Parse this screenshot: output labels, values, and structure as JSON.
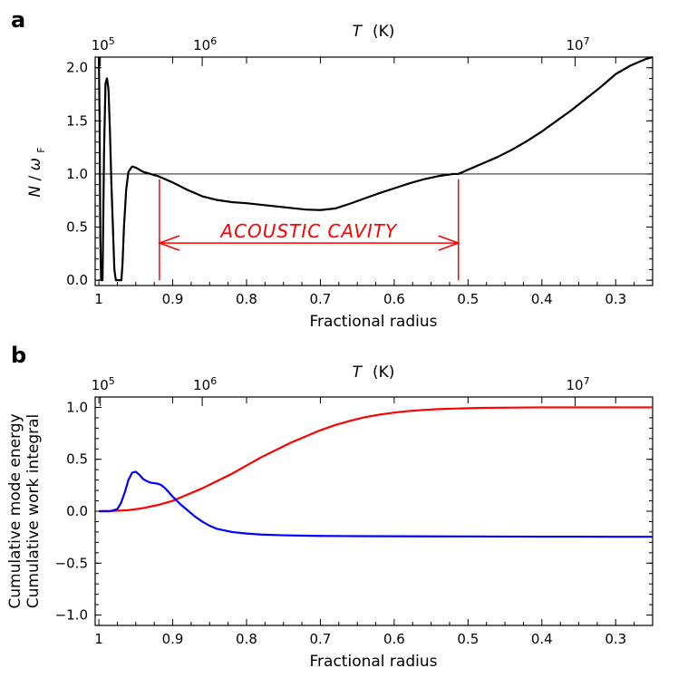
{
  "chart_data": [
    {
      "panel": "a",
      "type": "line",
      "xlabel": "Fractional radius",
      "ylabel_main": "N",
      "ylabel_slash": "/",
      "ylabel_omega": "ω",
      "ylabel_sub": "F",
      "top_axis_label_T": "T",
      "top_axis_label_unit": "(K)",
      "xlim": [
        1.005,
        0.25
      ],
      "ylim": [
        -0.05,
        2.1
      ],
      "x_ticks": [
        1,
        0.9,
        0.8,
        0.7,
        0.6,
        0.5,
        0.4,
        0.3
      ],
      "x_tick_labels": [
        "1",
        "0.9",
        "0.8",
        "0.7",
        "0.6",
        "0.5",
        "0.4",
        "0.3"
      ],
      "y_ticks": [
        0.0,
        0.5,
        1.0,
        1.5,
        2.0
      ],
      "y_tick_labels": [
        "0.0",
        "0.5",
        "1.0",
        "1.5",
        "2.0"
      ],
      "top_ticks": [
        {
          "x": 0.998,
          "base": "10",
          "exp": "5"
        },
        {
          "x": 0.86,
          "base": "10",
          "exp": "6"
        },
        {
          "x": 0.355,
          "base": "10",
          "exp": "7"
        }
      ],
      "reference_line_y": 1.0,
      "annotation": {
        "text": "ACOUSTIC CAVITY",
        "x_start": 0.918,
        "x_end": 0.513,
        "y_arrow": 0.35,
        "y_top": 0.95,
        "y_bottom": 0.0
      },
      "series": [
        {
          "name": "N/omega_F",
          "color": "#000000",
          "x": [
            1.0,
            0.999,
            0.998,
            0.997,
            0.995,
            0.993,
            0.991,
            0.989,
            0.987,
            0.985,
            0.983,
            0.981,
            0.979,
            0.977,
            0.9765,
            0.975,
            0.972,
            0.97,
            0.9695,
            0.968,
            0.966,
            0.963,
            0.96,
            0.955,
            0.95,
            0.945,
            0.94,
            0.93,
            0.92,
            0.91,
            0.9,
            0.88,
            0.86,
            0.84,
            0.82,
            0.8,
            0.78,
            0.76,
            0.74,
            0.72,
            0.7,
            0.68,
            0.66,
            0.64,
            0.62,
            0.6,
            0.58,
            0.56,
            0.54,
            0.52,
            0.513,
            0.5,
            0.48,
            0.46,
            0.44,
            0.42,
            0.4,
            0.38,
            0.36,
            0.34,
            0.32,
            0.3,
            0.28,
            0.26,
            0.25
          ],
          "y": [
            2.1,
            1.5,
            0.4,
            0.0,
            0.0,
            1.2,
            1.85,
            1.9,
            1.8,
            1.4,
            0.9,
            0.5,
            0.1,
            0.0,
            0.0,
            0.0,
            0.0,
            0.0,
            0.0,
            0.15,
            0.5,
            0.85,
            1.02,
            1.07,
            1.06,
            1.04,
            1.02,
            1.0,
            0.98,
            0.95,
            0.92,
            0.85,
            0.79,
            0.755,
            0.735,
            0.725,
            0.71,
            0.695,
            0.68,
            0.665,
            0.66,
            0.675,
            0.72,
            0.77,
            0.82,
            0.865,
            0.91,
            0.95,
            0.98,
            1.0,
            1.0,
            1.04,
            1.1,
            1.16,
            1.23,
            1.31,
            1.4,
            1.5,
            1.6,
            1.71,
            1.82,
            1.94,
            2.02,
            2.08,
            2.1
          ]
        }
      ]
    },
    {
      "panel": "b",
      "type": "line",
      "xlabel": "Fractional radius",
      "top_axis_label_T": "T",
      "top_axis_label_unit": "(K)",
      "xlim": [
        1.005,
        0.25
      ],
      "ylim": [
        -1.1,
        1.1
      ],
      "x_ticks": [
        1,
        0.9,
        0.8,
        0.7,
        0.6,
        0.5,
        0.4,
        0.3
      ],
      "x_tick_labels": [
        "1",
        "0.9",
        "0.8",
        "0.7",
        "0.6",
        "0.5",
        "0.4",
        "0.3"
      ],
      "y_ticks": [
        -1.0,
        -0.5,
        0.0,
        0.5,
        1.0
      ],
      "y_tick_labels": [
        "−1.0",
        "−0.5",
        "0.0",
        "0.5",
        "1.0"
      ],
      "top_ticks": [
        {
          "x": 0.998,
          "base": "10",
          "exp": "5"
        },
        {
          "x": 0.86,
          "base": "10",
          "exp": "6"
        },
        {
          "x": 0.355,
          "base": "10",
          "exp": "7"
        }
      ],
      "series": [
        {
          "name": "Cumulative mode energy",
          "color": "#ff0000",
          "x": [
            1.0,
            0.98,
            0.96,
            0.94,
            0.92,
            0.9,
            0.88,
            0.86,
            0.84,
            0.82,
            0.8,
            0.78,
            0.76,
            0.74,
            0.72,
            0.7,
            0.68,
            0.66,
            0.64,
            0.62,
            0.6,
            0.58,
            0.56,
            0.54,
            0.52,
            0.5,
            0.48,
            0.46,
            0.44,
            0.42,
            0.4,
            0.35,
            0.3,
            0.25
          ],
          "y": [
            0.0,
            0.003,
            0.01,
            0.03,
            0.06,
            0.1,
            0.16,
            0.22,
            0.29,
            0.36,
            0.44,
            0.52,
            0.59,
            0.66,
            0.72,
            0.78,
            0.83,
            0.87,
            0.905,
            0.93,
            0.95,
            0.965,
            0.975,
            0.983,
            0.988,
            0.992,
            0.995,
            0.997,
            0.998,
            0.999,
            1.0,
            1.0,
            1.0,
            1.0
          ]
        },
        {
          "name": "Cumulative work integral",
          "color": "#0000ff",
          "x": [
            1.0,
            0.985,
            0.975,
            0.97,
            0.965,
            0.96,
            0.955,
            0.95,
            0.945,
            0.94,
            0.935,
            0.93,
            0.925,
            0.92,
            0.915,
            0.91,
            0.905,
            0.9,
            0.89,
            0.88,
            0.87,
            0.86,
            0.85,
            0.84,
            0.82,
            0.8,
            0.78,
            0.75,
            0.72,
            0.7,
            0.65,
            0.6,
            0.55,
            0.5,
            0.45,
            0.4,
            0.35,
            0.3,
            0.25
          ],
          "y": [
            0.0,
            0.0,
            0.02,
            0.08,
            0.18,
            0.3,
            0.37,
            0.38,
            0.35,
            0.31,
            0.29,
            0.275,
            0.27,
            0.265,
            0.25,
            0.22,
            0.18,
            0.14,
            0.07,
            0.01,
            -0.05,
            -0.1,
            -0.14,
            -0.17,
            -0.2,
            -0.215,
            -0.225,
            -0.232,
            -0.236,
            -0.238,
            -0.24,
            -0.241,
            -0.242,
            -0.243,
            -0.244,
            -0.245,
            -0.245,
            -0.246,
            -0.246
          ]
        }
      ],
      "ylabel_red": "Cumulative mode energy",
      "ylabel_blue": "Cumulative work integral"
    }
  ]
}
